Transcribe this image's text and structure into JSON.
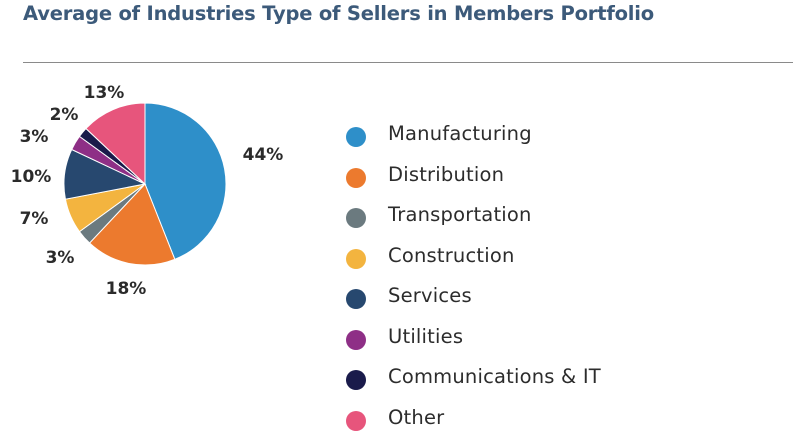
{
  "chart_data": {
    "type": "pie",
    "title": "Average of Industries Type of Sellers in Members Portfolio",
    "categories": [
      "Manufacturing",
      "Distribution",
      "Transportation",
      "Construction",
      "Services",
      "Utilities",
      "Communications & IT",
      "Other"
    ],
    "values": [
      44,
      18,
      3,
      7,
      10,
      3,
      2,
      13
    ],
    "value_labels": [
      "44%",
      "18%",
      "3%",
      "7%",
      "10%",
      "3%",
      "2%",
      "13%"
    ],
    "colors": [
      "#2e8fc9",
      "#ec7a2e",
      "#6b7a7f",
      "#f3b43f",
      "#27486f",
      "#8e2f86",
      "#1a1b4b",
      "#e7557c"
    ],
    "legend": "right"
  }
}
